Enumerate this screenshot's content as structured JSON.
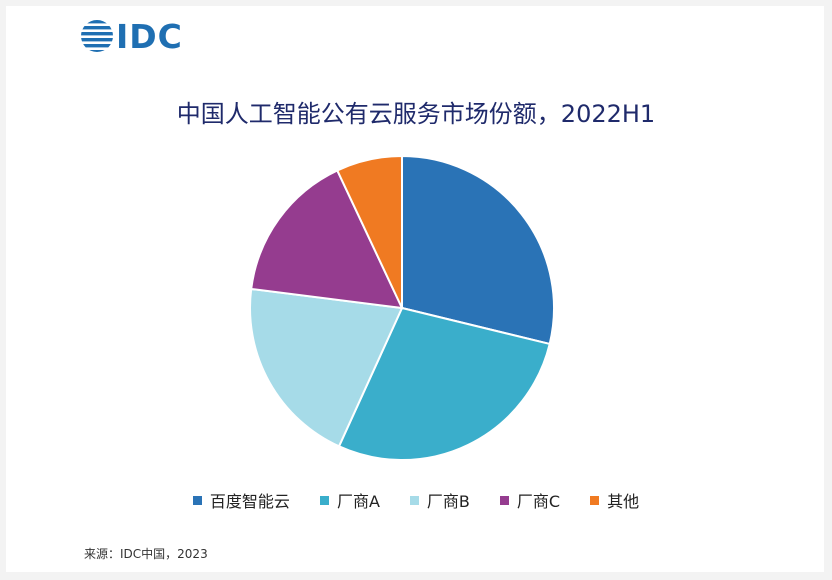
{
  "brand": {
    "logo_text": "IDC",
    "logo_color": "#1f6fb2"
  },
  "source": "来源：IDC中国，2023",
  "chart_data": {
    "type": "pie",
    "title": "中国人工智能公有云服务市场份额，2022H1",
    "legend_position": "bottom",
    "categories": [
      "百度智能云",
      "厂商A",
      "厂商B",
      "厂商C",
      "其他"
    ],
    "values": [
      28.8,
      28.0,
      20.2,
      16.0,
      7.0
    ],
    "colors": [
      "#2a73b6",
      "#3aaecb",
      "#a6dbe8",
      "#953c8f",
      "#f07a22"
    ]
  }
}
